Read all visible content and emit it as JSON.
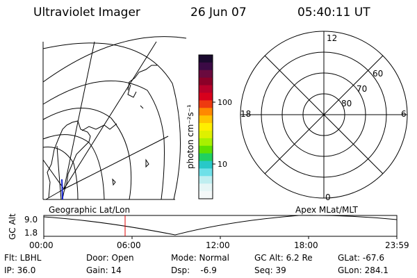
{
  "header": {
    "instrument": "Ultraviolet Imager",
    "date": "26 Jun 07",
    "time": "05:40:11 UT"
  },
  "colorbar": {
    "unit_label": "photon cm⁻²s⁻¹",
    "ticks": [
      "100",
      "10"
    ],
    "colors": [
      "#1a0a2e",
      "#3b0a45",
      "#6a0a3e",
      "#8b0028",
      "#b8002a",
      "#d8001c",
      "#ee3a10",
      "#ff8800",
      "#ffc400",
      "#ffee00",
      "#dff000",
      "#a8f000",
      "#5ee000",
      "#20d060",
      "#28c8c8",
      "#6fe0e8",
      "#bfeef0",
      "#e6f6f6",
      "#f4f8f8"
    ]
  },
  "polar": {
    "labels": {
      "top": "12",
      "left": "18",
      "right": "6",
      "bottom": "0"
    },
    "lat_labels": [
      "60",
      "70",
      "80"
    ]
  },
  "altitude_plot": {
    "ylabel": "GC Alt",
    "yticks": [
      "9.0",
      "1.8"
    ],
    "left_title": "Geographic Lat/Lon",
    "right_title": "Apex MLat/MLT",
    "xticks": [
      "00:00",
      "06:00",
      "12:00",
      "18:00",
      "23:59"
    ],
    "marker_color": "#e00000"
  },
  "info": {
    "flt": "Flt: LBHL",
    "door": "Door: Open",
    "mode": "Mode: Normal",
    "gc_alt": "GC Alt: 6.2 Re",
    "glat": "GLat: -67.6",
    "ip": "IP: 36.0",
    "gain": "Gain: 14",
    "dsp": "Dsp:    -6.9",
    "seq": "Seq: 39",
    "glon": "GLon: 284.1"
  }
}
